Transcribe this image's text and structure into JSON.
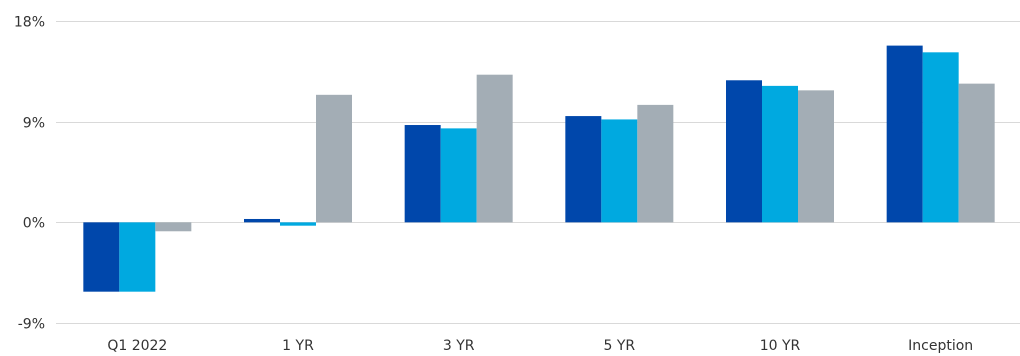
{
  "chart_data": {
    "type": "bar",
    "categories": [
      "Q1 2022",
      "1 YR",
      "3 YR",
      "5 YR",
      "10 YR",
      "Inception"
    ],
    "series": [
      {
        "values": [
          -6.2,
          0.3,
          8.7,
          9.5,
          12.7,
          15.8
        ]
      },
      {
        "values": [
          -6.2,
          -0.3,
          8.4,
          9.2,
          12.2,
          15.2
        ]
      },
      {
        "values": [
          -0.8,
          11.4,
          13.2,
          10.5,
          11.8,
          12.4
        ]
      }
    ],
    "colors": [
      "#0047AB",
      "#00A9E0",
      "#A3ADB5"
    ],
    "ylim": [
      -9,
      18
    ],
    "yticks": [
      18,
      9,
      0,
      -9
    ],
    "ytick_labels": [
      "18%",
      "9%",
      "0%",
      "-9%"
    ],
    "grid": true,
    "title": "",
    "xlabel": "",
    "ylabel": ""
  }
}
